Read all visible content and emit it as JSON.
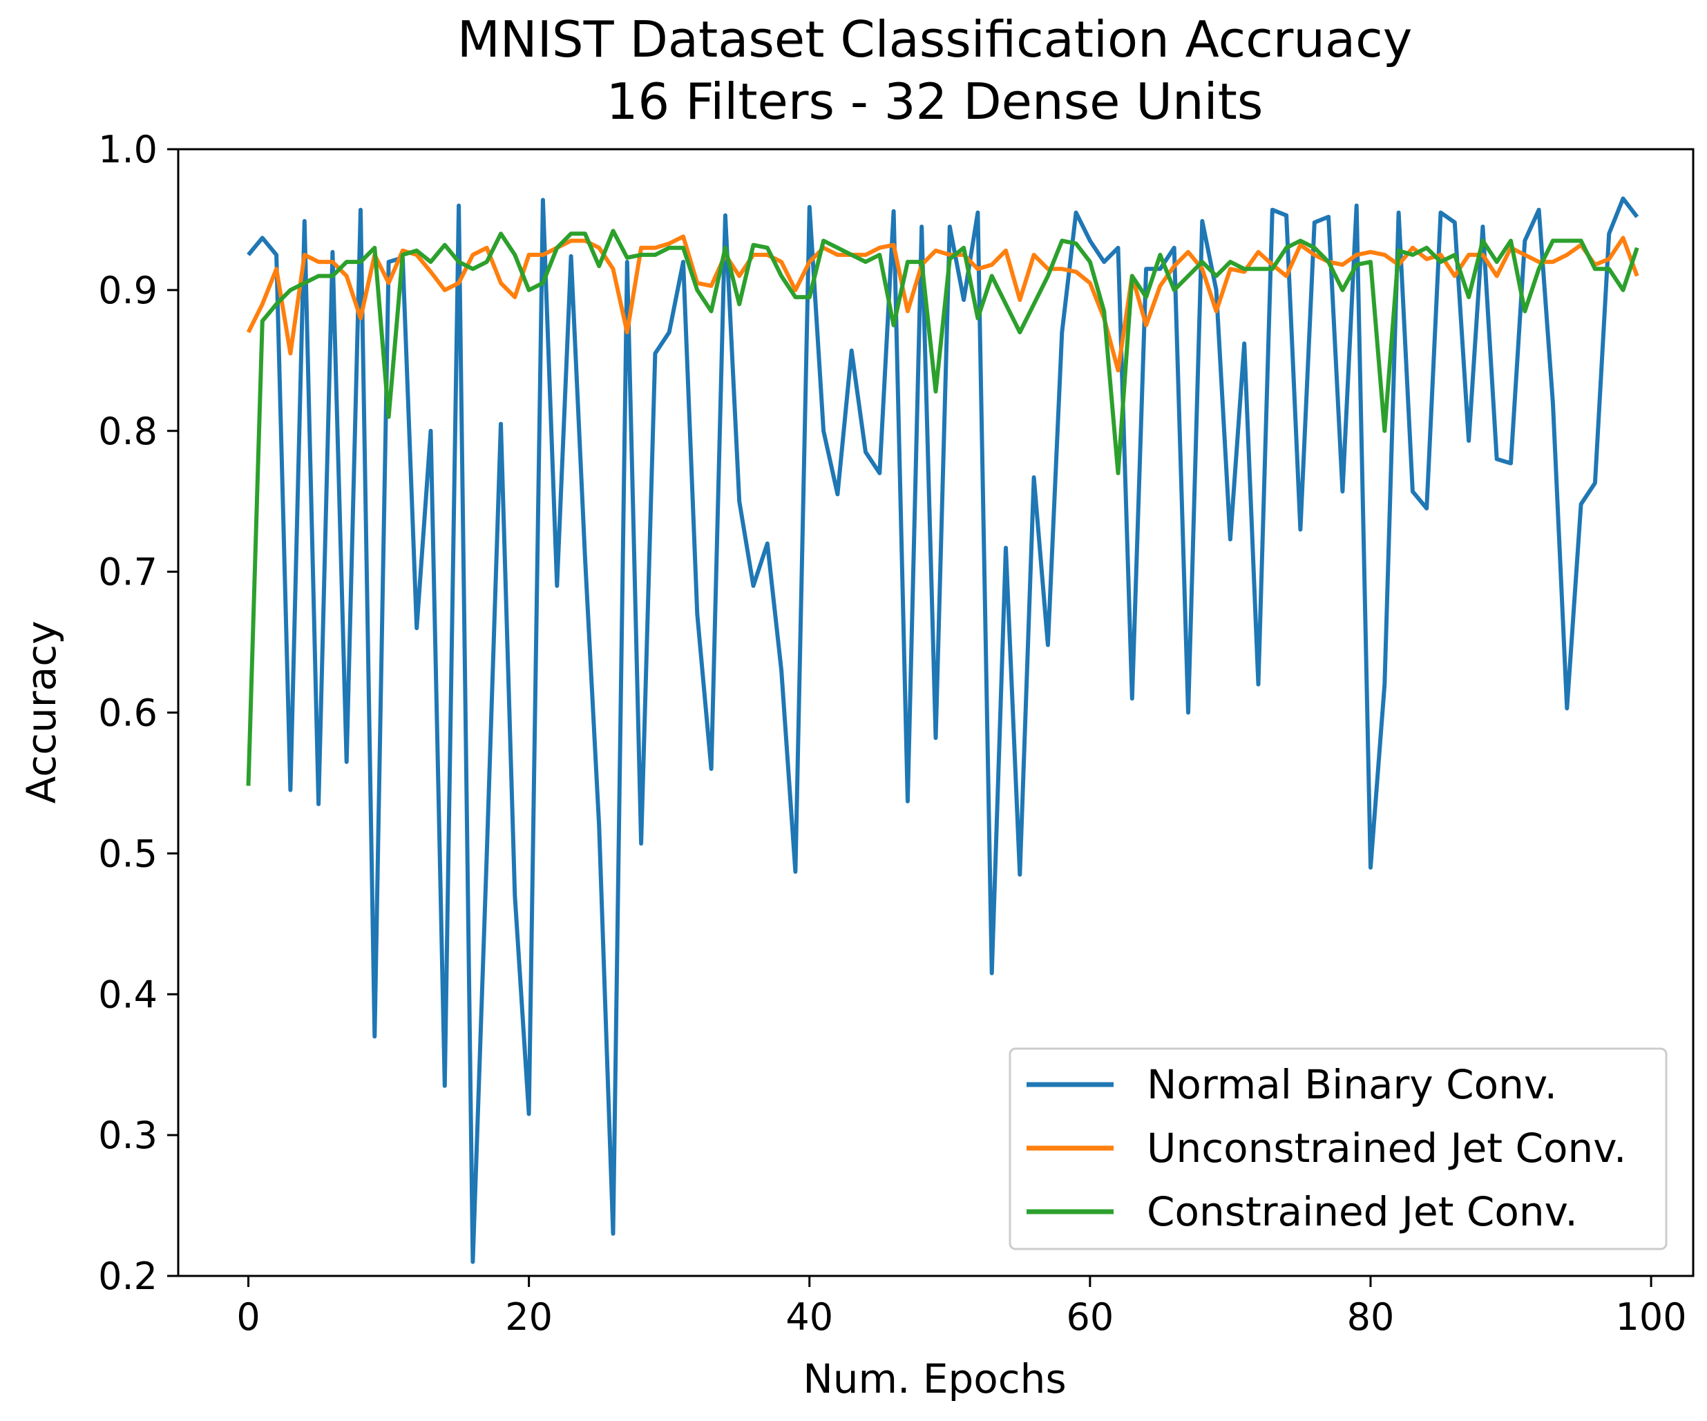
{
  "chart_data": {
    "type": "line",
    "title": "MNIST Dataset Classification Accruacy",
    "subtitle": "16 Filters - 32 Dense Units",
    "xlabel": "Num. Epochs",
    "ylabel": "Accuracy",
    "xlim": [
      -5,
      103
    ],
    "ylim": [
      0.2,
      1.0
    ],
    "xticks": [
      0,
      20,
      40,
      60,
      80,
      100
    ],
    "xtick_labels": [
      "0",
      "20",
      "40",
      "60",
      "80",
      "100"
    ],
    "yticks": [
      0.2,
      0.3,
      0.4,
      0.5,
      0.6,
      0.7,
      0.8,
      0.9,
      1.0
    ],
    "ytick_labels": [
      "0.2",
      "0.3",
      "0.4",
      "0.5",
      "0.6",
      "0.7",
      "0.8",
      "0.9",
      "1.0"
    ],
    "grid": false,
    "legend_position": "lower-right",
    "series": [
      {
        "name": "Normal Binary Conv.",
        "color": "#1f77b4",
        "values": [
          0.925,
          0.937,
          0.925,
          0.545,
          0.949,
          0.535,
          0.927,
          0.565,
          0.957,
          0.37,
          0.92,
          0.923,
          0.66,
          0.8,
          0.335,
          0.96,
          0.21,
          0.5,
          0.805,
          0.47,
          0.315,
          0.964,
          0.69,
          0.924,
          0.71,
          0.52,
          0.23,
          0.92,
          0.507,
          0.855,
          0.87,
          0.92,
          0.67,
          0.56,
          0.953,
          0.75,
          0.69,
          0.72,
          0.63,
          0.487,
          0.959,
          0.8,
          0.755,
          0.857,
          0.785,
          0.77,
          0.956,
          0.537,
          0.945,
          0.582,
          0.945,
          0.893,
          0.955,
          0.415,
          0.717,
          0.485,
          0.767,
          0.648,
          0.87,
          0.955,
          0.935,
          0.92,
          0.93,
          0.61,
          0.915,
          0.915,
          0.93,
          0.6,
          0.949,
          0.9,
          0.723,
          0.862,
          0.62,
          0.957,
          0.953,
          0.73,
          0.948,
          0.952,
          0.757,
          0.96,
          0.49,
          0.62,
          0.955,
          0.757,
          0.745,
          0.955,
          0.948,
          0.793,
          0.945,
          0.78,
          0.777,
          0.935,
          0.957,
          0.82,
          0.603,
          0.748,
          0.763,
          0.94,
          0.965,
          0.952
        ]
      },
      {
        "name": "Unconstrained Jet Conv.",
        "color": "#ff7f0e",
        "values": [
          0.87,
          0.89,
          0.915,
          0.855,
          0.925,
          0.92,
          0.92,
          0.91,
          0.88,
          0.925,
          0.905,
          0.928,
          0.925,
          0.913,
          0.9,
          0.905,
          0.925,
          0.93,
          0.905,
          0.895,
          0.925,
          0.925,
          0.93,
          0.935,
          0.935,
          0.93,
          0.915,
          0.87,
          0.93,
          0.93,
          0.933,
          0.938,
          0.905,
          0.903,
          0.925,
          0.91,
          0.925,
          0.925,
          0.92,
          0.9,
          0.92,
          0.93,
          0.925,
          0.925,
          0.925,
          0.93,
          0.932,
          0.885,
          0.918,
          0.928,
          0.925,
          0.925,
          0.915,
          0.918,
          0.928,
          0.893,
          0.925,
          0.915,
          0.915,
          0.913,
          0.905,
          0.88,
          0.843,
          0.91,
          0.875,
          0.903,
          0.917,
          0.927,
          0.915,
          0.885,
          0.915,
          0.913,
          0.927,
          0.918,
          0.91,
          0.932,
          0.925,
          0.92,
          0.918,
          0.925,
          0.927,
          0.925,
          0.918,
          0.93,
          0.922,
          0.925,
          0.91,
          0.925,
          0.925,
          0.91,
          0.93,
          0.925,
          0.92,
          0.92,
          0.925,
          0.932,
          0.918,
          0.922,
          0.937,
          0.91
        ]
      },
      {
        "name": "Constrained Jet Conv.",
        "color": "#2ca02c",
        "values": [
          0.548,
          0.878,
          0.89,
          0.9,
          0.905,
          0.91,
          0.91,
          0.92,
          0.92,
          0.93,
          0.81,
          0.925,
          0.928,
          0.92,
          0.932,
          0.92,
          0.915,
          0.92,
          0.94,
          0.925,
          0.9,
          0.905,
          0.93,
          0.94,
          0.94,
          0.917,
          0.942,
          0.923,
          0.925,
          0.925,
          0.93,
          0.93,
          0.9,
          0.885,
          0.93,
          0.89,
          0.932,
          0.93,
          0.91,
          0.895,
          0.895,
          0.935,
          0.93,
          0.925,
          0.92,
          0.925,
          0.875,
          0.92,
          0.92,
          0.828,
          0.922,
          0.93,
          0.88,
          0.91,
          0.89,
          0.87,
          0.89,
          0.91,
          0.935,
          0.933,
          0.92,
          0.885,
          0.77,
          0.91,
          0.895,
          0.925,
          0.9,
          0.91,
          0.92,
          0.91,
          0.92,
          0.915,
          0.915,
          0.915,
          0.93,
          0.935,
          0.93,
          0.92,
          0.9,
          0.918,
          0.92,
          0.8,
          0.928,
          0.925,
          0.93,
          0.92,
          0.925,
          0.895,
          0.935,
          0.92,
          0.935,
          0.885,
          0.915,
          0.935,
          0.935,
          0.935,
          0.915,
          0.915,
          0.9,
          0.93
        ]
      }
    ]
  }
}
